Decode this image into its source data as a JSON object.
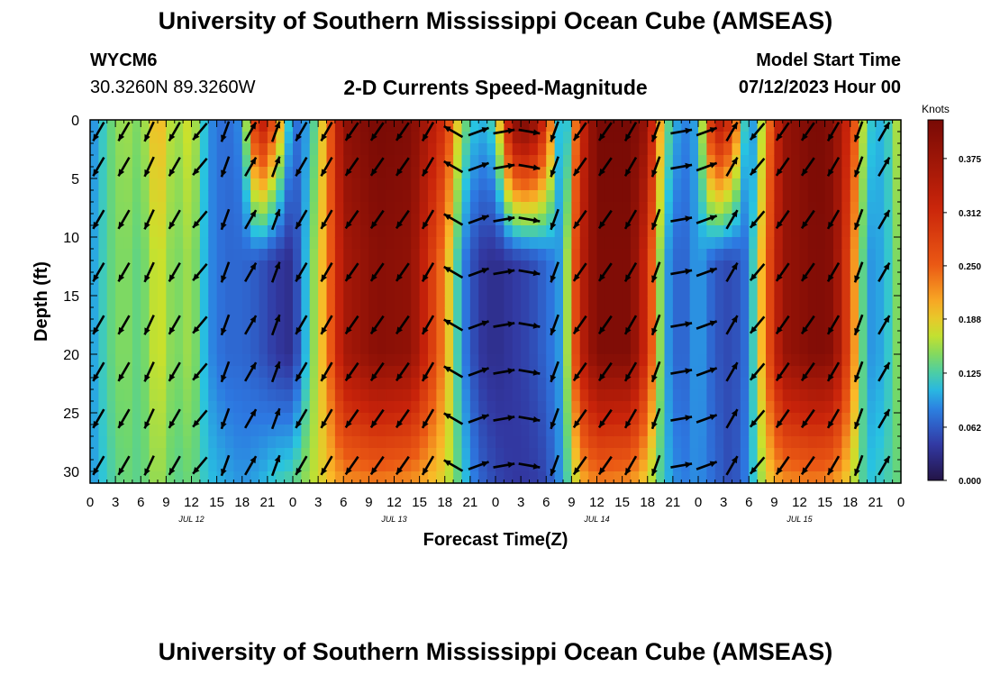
{
  "page": {
    "title": "University of Southern Mississippi Ocean Cube (AMSEAS)",
    "title_bottom": "University of Southern Mississippi Ocean Cube (AMSEAS)",
    "station": "WYCM6",
    "coordinates": "30.3260N  89.3260W",
    "model_start_label": "Model Start Time",
    "model_start_value": "07/12/2023 Hour 00"
  },
  "chart_data": {
    "type": "heatmap",
    "title": "2-D Currents Speed-Magnitude",
    "xlabel": "Forecast Time(Z)",
    "ylabel": "Depth (ft)",
    "colorbar_label": "Knots",
    "xlim": [
      0,
      96
    ],
    "ylim": [
      31,
      0
    ],
    "x_tick_values": [
      0,
      3,
      6,
      9,
      12,
      15,
      18,
      21,
      24,
      27,
      30,
      33,
      36,
      39,
      42,
      45,
      48,
      51,
      54,
      57,
      60,
      63,
      66,
      69,
      72,
      75,
      78,
      81,
      84,
      87,
      90,
      93,
      96
    ],
    "x_tick_labels": [
      "0",
      "3",
      "6",
      "9",
      "12",
      "15",
      "18",
      "21",
      "0",
      "3",
      "6",
      "9",
      "12",
      "15",
      "18",
      "21",
      "0",
      "3",
      "6",
      "9",
      "12",
      "15",
      "18",
      "21",
      "0",
      "3",
      "6",
      "9",
      "12",
      "15",
      "18",
      "21",
      "0"
    ],
    "date_labels": [
      {
        "label": "JUL 12",
        "x": 12
      },
      {
        "label": "JUL 13",
        "x": 36
      },
      {
        "label": "JUL 14",
        "x": 60
      },
      {
        "label": "JUL 15",
        "x": 84
      }
    ],
    "y_tick_values": [
      0,
      5,
      10,
      15,
      20,
      25,
      30
    ],
    "colorbar_ticks": [
      {
        "value": 0.0,
        "label": "0.000"
      },
      {
        "value": 0.062,
        "label": "0.062"
      },
      {
        "value": 0.125,
        "label": "0.125"
      },
      {
        "value": 0.188,
        "label": "0.188"
      },
      {
        "value": 0.25,
        "label": "0.250"
      },
      {
        "value": 0.312,
        "label": "0.312"
      },
      {
        "value": 0.375,
        "label": "0.375"
      }
    ],
    "colorbar_range": [
      0,
      0.42
    ],
    "speed_profile_by_hour": [
      {
        "hour": 0,
        "surface": 0.08,
        "mid": 0.09,
        "bottom": 0.09
      },
      {
        "hour": 2,
        "surface": 0.13,
        "mid": 0.13,
        "bottom": 0.12
      },
      {
        "hour": 4,
        "surface": 0.16,
        "mid": 0.15,
        "bottom": 0.14
      },
      {
        "hour": 6,
        "surface": 0.14,
        "mid": 0.13,
        "bottom": 0.13
      },
      {
        "hour": 8,
        "surface": 0.21,
        "mid": 0.18,
        "bottom": 0.16
      },
      {
        "hour": 10,
        "surface": 0.15,
        "mid": 0.14,
        "bottom": 0.13
      },
      {
        "hour": 12,
        "surface": 0.18,
        "mid": 0.16,
        "bottom": 0.14
      },
      {
        "hour": 14,
        "surface": 0.09,
        "mid": 0.09,
        "bottom": 0.11
      },
      {
        "hour": 16,
        "surface": 0.07,
        "mid": 0.07,
        "bottom": 0.1
      },
      {
        "hour": 18,
        "surface": 0.09,
        "mid": 0.07,
        "bottom": 0.09
      },
      {
        "hour": 20,
        "surface": 0.36,
        "mid": 0.06,
        "bottom": 0.1
      },
      {
        "hour": 22,
        "surface": 0.25,
        "mid": 0.04,
        "bottom": 0.12
      },
      {
        "hour": 24,
        "surface": 0.07,
        "mid": 0.03,
        "bottom": 0.13
      },
      {
        "hour": 26,
        "surface": 0.1,
        "mid": 0.13,
        "bottom": 0.16
      },
      {
        "hour": 28,
        "surface": 0.22,
        "mid": 0.22,
        "bottom": 0.19
      },
      {
        "hour": 30,
        "surface": 0.39,
        "mid": 0.36,
        "bottom": 0.22
      },
      {
        "hour": 34,
        "surface": 0.42,
        "mid": 0.4,
        "bottom": 0.23
      },
      {
        "hour": 38,
        "surface": 0.41,
        "mid": 0.39,
        "bottom": 0.22
      },
      {
        "hour": 42,
        "surface": 0.3,
        "mid": 0.22,
        "bottom": 0.18
      },
      {
        "hour": 44,
        "surface": 0.15,
        "mid": 0.09,
        "bottom": 0.12
      },
      {
        "hour": 46,
        "surface": 0.1,
        "mid": 0.04,
        "bottom": 0.07
      },
      {
        "hour": 48,
        "surface": 0.13,
        "mid": 0.03,
        "bottom": 0.05
      },
      {
        "hour": 50,
        "surface": 0.4,
        "mid": 0.04,
        "bottom": 0.04
      },
      {
        "hour": 52,
        "surface": 0.42,
        "mid": 0.05,
        "bottom": 0.04
      },
      {
        "hour": 54,
        "surface": 0.3,
        "mid": 0.07,
        "bottom": 0.05
      },
      {
        "hour": 56,
        "surface": 0.05,
        "mid": 0.1,
        "bottom": 0.1
      },
      {
        "hour": 58,
        "surface": 0.3,
        "mid": 0.33,
        "bottom": 0.2
      },
      {
        "hour": 60,
        "surface": 0.42,
        "mid": 0.41,
        "bottom": 0.23
      },
      {
        "hour": 64,
        "surface": 0.42,
        "mid": 0.41,
        "bottom": 0.22
      },
      {
        "hour": 66,
        "surface": 0.38,
        "mid": 0.3,
        "bottom": 0.18
      },
      {
        "hour": 68,
        "surface": 0.15,
        "mid": 0.1,
        "bottom": 0.11
      },
      {
        "hour": 70,
        "surface": 0.08,
        "mid": 0.06,
        "bottom": 0.08
      },
      {
        "hour": 72,
        "surface": 0.1,
        "mid": 0.1,
        "bottom": 0.09
      },
      {
        "hour": 74,
        "surface": 0.36,
        "mid": 0.06,
        "bottom": 0.07
      },
      {
        "hour": 76,
        "surface": 0.3,
        "mid": 0.05,
        "bottom": 0.05
      },
      {
        "hour": 78,
        "surface": 0.06,
        "mid": 0.08,
        "bottom": 0.09
      },
      {
        "hour": 80,
        "surface": 0.2,
        "mid": 0.24,
        "bottom": 0.18
      },
      {
        "hour": 82,
        "surface": 0.38,
        "mid": 0.38,
        "bottom": 0.22
      },
      {
        "hour": 86,
        "surface": 0.42,
        "mid": 0.41,
        "bottom": 0.23
      },
      {
        "hour": 88,
        "surface": 0.4,
        "mid": 0.4,
        "bottom": 0.22
      },
      {
        "hour": 90,
        "surface": 0.3,
        "mid": 0.26,
        "bottom": 0.18
      },
      {
        "hour": 92,
        "surface": 0.12,
        "mid": 0.09,
        "bottom": 0.11
      },
      {
        "hour": 94,
        "surface": 0.1,
        "mid": 0.1,
        "bottom": 0.12
      },
      {
        "hour": 96,
        "surface": 0.18,
        "mid": 0.16,
        "bottom": 0.14
      }
    ],
    "vector_rows_depth": [
      1,
      4,
      8.5,
      13,
      17.5,
      21.5,
      25.5,
      29.5
    ],
    "vector_columns": [
      {
        "hour": 1,
        "dir": 210
      },
      {
        "hour": 4,
        "dir": 210
      },
      {
        "hour": 7,
        "dir": 205
      },
      {
        "hour": 10,
        "dir": 210
      },
      {
        "hour": 13,
        "dir": 220
      },
      {
        "hour": 16,
        "dir": 200
      },
      {
        "hour": 19,
        "dir": 30
      },
      {
        "hour": 22,
        "dir": 20
      },
      {
        "hour": 25,
        "dir": 210
      },
      {
        "hour": 28,
        "dir": 210
      },
      {
        "hour": 31,
        "dir": 215
      },
      {
        "hour": 34,
        "dir": 215
      },
      {
        "hour": 37,
        "dir": 215
      },
      {
        "hour": 40,
        "dir": 210
      },
      {
        "hour": 43,
        "dir": 300
      },
      {
        "hour": 46,
        "dir": 70
      },
      {
        "hour": 49,
        "dir": 80
      },
      {
        "hour": 52,
        "dir": 100
      },
      {
        "hour": 55,
        "dir": 200
      },
      {
        "hour": 58,
        "dir": 215
      },
      {
        "hour": 61,
        "dir": 215
      },
      {
        "hour": 64,
        "dir": 210
      },
      {
        "hour": 67,
        "dir": 200
      },
      {
        "hour": 70,
        "dir": 80
      },
      {
        "hour": 73,
        "dir": 70
      },
      {
        "hour": 76,
        "dir": 30
      },
      {
        "hour": 79,
        "dir": 220
      },
      {
        "hour": 82,
        "dir": 215
      },
      {
        "hour": 85,
        "dir": 215
      },
      {
        "hour": 88,
        "dir": 210
      },
      {
        "hour": 91,
        "dir": 200
      },
      {
        "hour": 94,
        "dir": 30
      }
    ],
    "grid": false,
    "legend": "colorbar-right"
  }
}
